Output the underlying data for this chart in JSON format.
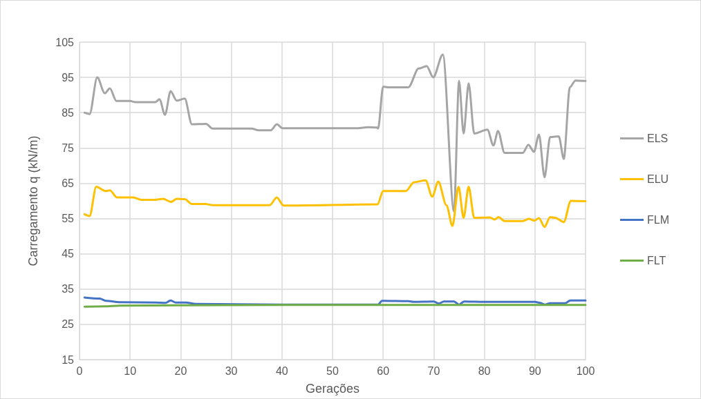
{
  "chart_data": {
    "type": "line",
    "xlabel": "Gerações",
    "ylabel": "Carregamento q (kN/m)",
    "xlim": [
      0,
      100
    ],
    "xticks": [
      0,
      10,
      20,
      30,
      40,
      50,
      60,
      70,
      80,
      90,
      100
    ],
    "ylim": [
      15,
      105
    ],
    "yticks": [
      15,
      25,
      35,
      45,
      55,
      65,
      75,
      85,
      95,
      105
    ],
    "grid": true,
    "legend": "right",
    "marker": "none",
    "line_style": "solid",
    "series": [
      {
        "name": "ELS",
        "color": "#a5a5a5",
        "x": [
          1,
          2,
          3.5,
          5,
          6,
          7.3,
          10,
          11,
          15,
          15.8,
          16.9,
          18,
          19.2,
          20.8,
          22.2,
          25,
          26.3,
          34,
          35.4,
          37.8,
          39,
          40.1,
          55,
          57,
          58.8,
          59,
          60,
          61,
          65,
          67,
          68.6,
          69.9,
          71.8,
          74,
          75,
          75.9,
          76.9,
          78,
          80.6,
          81.8,
          82.7,
          84,
          87.6,
          88.7,
          89.8,
          90.8,
          91.9,
          93,
          94.7,
          95.7,
          96.9,
          98,
          100
        ],
        "values": [
          85,
          84.6,
          95,
          90.5,
          91.9,
          88.3,
          88.3,
          88,
          88,
          88.8,
          84.4,
          91.1,
          88.4,
          89,
          81.7,
          81.8,
          80.5,
          80.5,
          80,
          80,
          81.7,
          80.6,
          80.6,
          80.9,
          80.8,
          80.5,
          92.4,
          92.2,
          92.2,
          97.5,
          98.2,
          95,
          101.5,
          57,
          94,
          79.1,
          93.3,
          79.1,
          80.2,
          75.7,
          79.8,
          73.6,
          73.6,
          75.9,
          73.9,
          78.8,
          66.7,
          78.1,
          78.3,
          71.9,
          92.2,
          94.1,
          94
        ]
      },
      {
        "name": "ELU",
        "color": "#ffc000",
        "x": [
          1,
          2,
          3.3,
          5.1,
          6,
          7.4,
          10.6,
          12.2,
          14.9,
          16.5,
          18.1,
          19.2,
          20.8,
          22.2,
          24.9,
          26.3,
          37.6,
          39,
          40.3,
          58.9,
          60,
          64.5,
          66.1,
          68.4,
          69.7,
          70.9,
          72.5,
          73.7,
          74.9,
          75.9,
          76.9,
          78,
          81.1,
          82,
          82.8,
          84,
          87.6,
          88.8,
          89.9,
          90.8,
          91.9,
          93,
          94,
          95.7,
          97.1,
          100
        ],
        "values": [
          56.2,
          55.7,
          64,
          62.8,
          63,
          61,
          61,
          60.3,
          60.3,
          60.6,
          59.7,
          60.6,
          60.5,
          59.1,
          59.1,
          58.8,
          58.8,
          61,
          58.7,
          59,
          62.8,
          62.8,
          65.3,
          65.8,
          61.2,
          65.5,
          58.8,
          52.9,
          64,
          55.2,
          64,
          55.2,
          55.3,
          54.7,
          55.4,
          54.3,
          54.3,
          54.9,
          54.4,
          55.1,
          52.6,
          55.4,
          55.2,
          54,
          60,
          59.9
        ]
      },
      {
        "name": "FLM",
        "color": "#4472c4",
        "x": [
          1,
          4,
          5.2,
          8,
          15,
          17,
          18,
          19,
          21,
          23,
          40,
          59,
          59.8,
          65,
          66,
          70,
          71,
          72,
          74,
          75,
          76,
          80,
          90,
          91,
          92,
          93,
          96,
          97,
          100
        ],
        "values": [
          32.6,
          32.3,
          31.7,
          31.3,
          31.2,
          31.1,
          31.8,
          31.2,
          31.2,
          30.8,
          30.6,
          30.6,
          31.7,
          31.6,
          31.4,
          31.5,
          30.9,
          31.5,
          31.5,
          30.6,
          31.5,
          31.4,
          31.4,
          31.1,
          30.6,
          31,
          31,
          31.8,
          31.8
        ]
      },
      {
        "name": "FLT",
        "color": "#70ad47",
        "x": [
          1,
          5,
          8,
          20,
          40,
          100
        ],
        "values": [
          30,
          30.1,
          30.3,
          30.4,
          30.5,
          30.5
        ]
      }
    ]
  }
}
